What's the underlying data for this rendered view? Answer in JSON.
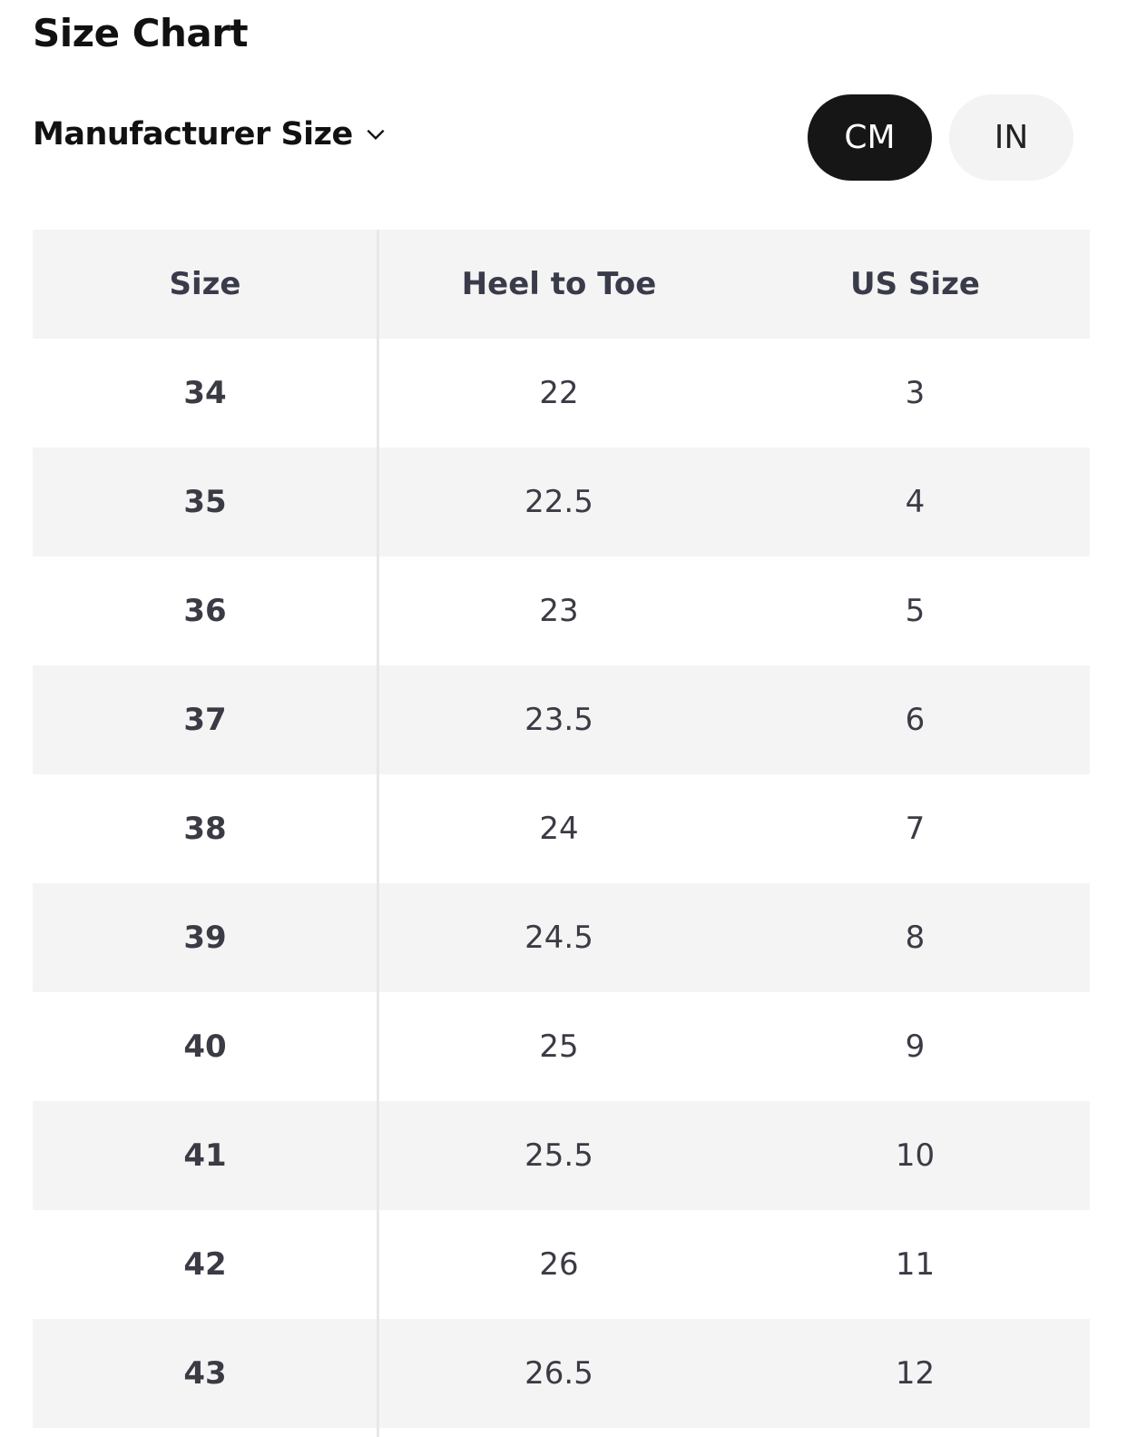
{
  "title": "Size Chart",
  "size_system": {
    "label": "Manufacturer Size",
    "icon": "chevron-down-icon"
  },
  "unit_toggle": {
    "options": [
      "CM",
      "IN"
    ],
    "selected": "CM"
  },
  "table": {
    "headers": [
      "Size",
      "Heel to Toe",
      "US Size"
    ],
    "rows": [
      [
        "34",
        "22",
        "3"
      ],
      [
        "35",
        "22.5",
        "4"
      ],
      [
        "36",
        "23",
        "5"
      ],
      [
        "37",
        "23.5",
        "6"
      ],
      [
        "38",
        "24",
        "7"
      ],
      [
        "39",
        "24.5",
        "8"
      ],
      [
        "40",
        "25",
        "9"
      ],
      [
        "41",
        "25.5",
        "10"
      ],
      [
        "42",
        "26",
        "11"
      ],
      [
        "43",
        "26.5",
        "12"
      ]
    ]
  }
}
